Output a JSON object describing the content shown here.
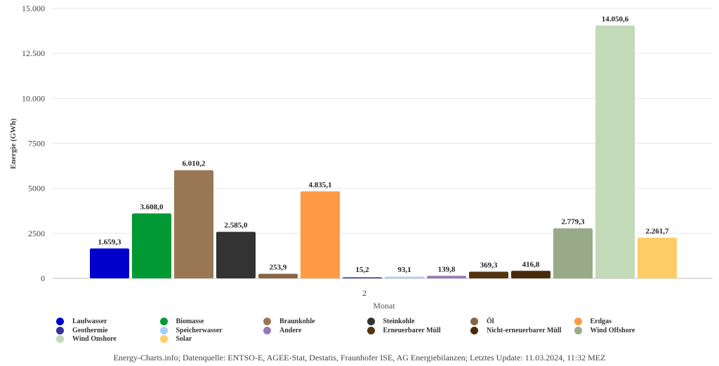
{
  "chart_data": {
    "type": "bar",
    "ylabel": "Energie (GWh)",
    "xlabel": "Monat",
    "categories": [
      "2"
    ],
    "ylim": [
      0,
      15000
    ],
    "yticks": [
      0,
      2500,
      5000,
      7500,
      10000,
      12500,
      15000
    ],
    "ytick_labels": [
      "0",
      "2500",
      "5000",
      "7500",
      "10.000",
      "12.500",
      "15.000"
    ],
    "grid": true,
    "legend_position": "bottom",
    "series": [
      {
        "name": "Laufwasser",
        "values": [
          1659.3
        ],
        "label": "1.659,3",
        "color": "#0000cc"
      },
      {
        "name": "Biomasse",
        "values": [
          3608.0
        ],
        "label": "3.608,0",
        "color": "#009933"
      },
      {
        "name": "Braunkohle",
        "values": [
          6010.2
        ],
        "label": "6.010,2",
        "color": "#997755"
      },
      {
        "name": "Steinkohle",
        "values": [
          2585.0
        ],
        "label": "2.585,0",
        "color": "#333333"
      },
      {
        "name": "Öl",
        "values": [
          253.9
        ],
        "label": "253,9",
        "color": "#886644"
      },
      {
        "name": "Erdgas",
        "values": [
          4835.1
        ],
        "label": "4.835,1",
        "color": "#ff9944"
      },
      {
        "name": "Geothermie",
        "values": [
          15.2
        ],
        "label": "15,2",
        "color": "#333399"
      },
      {
        "name": "Speicherwasser",
        "values": [
          93.1
        ],
        "label": "93,1",
        "color": "#aaccff"
      },
      {
        "name": "Andere",
        "values": [
          139.8
        ],
        "label": "139,8",
        "color": "#9977bb"
      },
      {
        "name": "Erneuerbarer Müll",
        "values": [
          369.3
        ],
        "label": "369,3",
        "color": "#553311"
      },
      {
        "name": "Nicht-erneuerbarer Müll",
        "values": [
          416.8
        ],
        "label": "416,8",
        "color": "#4a2a0c"
      },
      {
        "name": "Wind Offshore",
        "values": [
          2779.3
        ],
        "label": "2.779,3",
        "color": "#99aa88"
      },
      {
        "name": "Wind Onshore",
        "values": [
          14050.6
        ],
        "label": "14.050,6",
        "color": "#c2dab8"
      },
      {
        "name": "Solar",
        "values": [
          2261.7
        ],
        "label": "2.261,7",
        "color": "#ffcc66"
      }
    ]
  },
  "footer": "Energy-Charts.info; Datenquelle: ENTSO-E, AGEE-Stat, Destatis, Fraunhofer ISE, AG Energiebilanzen; Letztes Update: 11.03.2024, 11:32 MEZ"
}
